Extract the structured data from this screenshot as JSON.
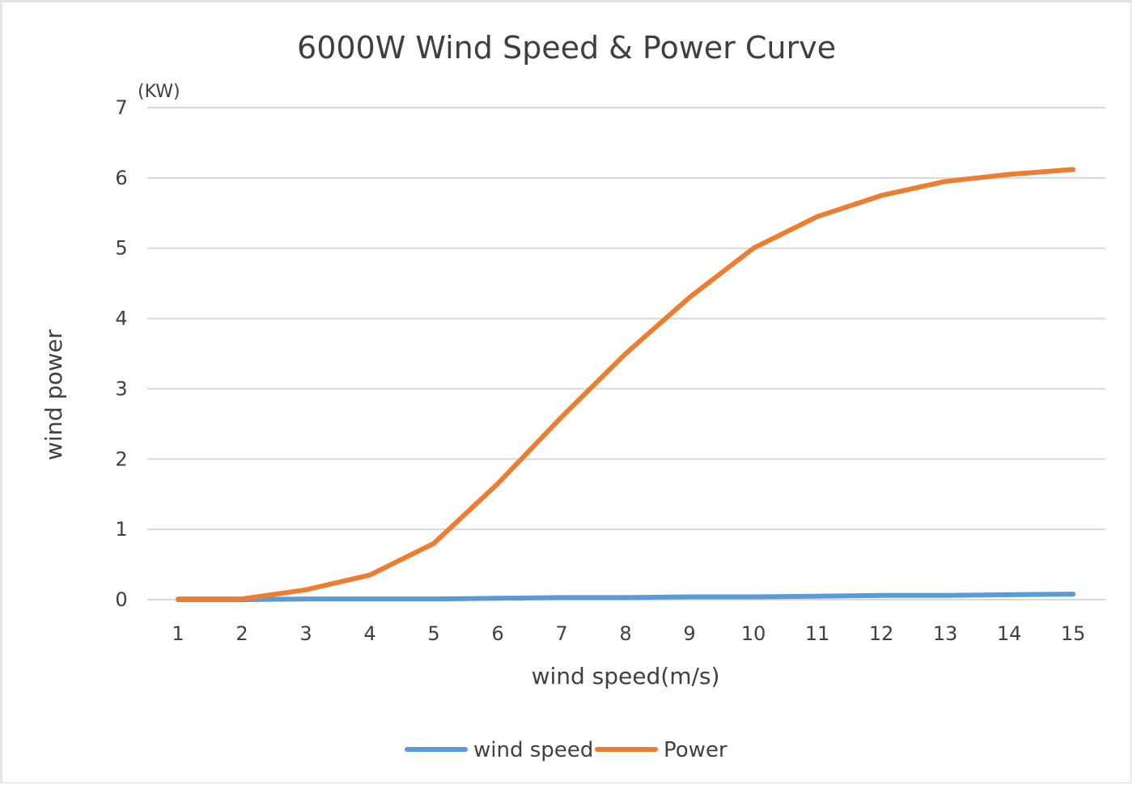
{
  "chart_data": {
    "type": "line",
    "title": "6000W Wind Speed & Power Curve",
    "xlabel": "wind speed(m/s)",
    "ylabel": "wind power",
    "y_unit": "(KW)",
    "categories": [
      "1",
      "2",
      "3",
      "4",
      "5",
      "6",
      "7",
      "8",
      "9",
      "10",
      "11",
      "12",
      "13",
      "14",
      "15"
    ],
    "ylim": [
      0,
      7
    ],
    "yticks": [
      "0",
      "1",
      "2",
      "3",
      "4",
      "5",
      "6",
      "7"
    ],
    "grid": true,
    "legend_position": "bottom",
    "series": [
      {
        "name": "wind speed",
        "color": "#5B9BD5",
        "values": [
          0.0,
          0.0,
          0.01,
          0.01,
          0.01,
          0.02,
          0.03,
          0.03,
          0.04,
          0.04,
          0.05,
          0.06,
          0.06,
          0.07,
          0.08
        ]
      },
      {
        "name": "Power",
        "color": "#ED7D31",
        "values": [
          0.01,
          0.01,
          0.14,
          0.35,
          0.8,
          1.65,
          2.6,
          3.5,
          4.3,
          5.0,
          5.45,
          5.75,
          5.95,
          6.05,
          6.12
        ]
      }
    ]
  }
}
